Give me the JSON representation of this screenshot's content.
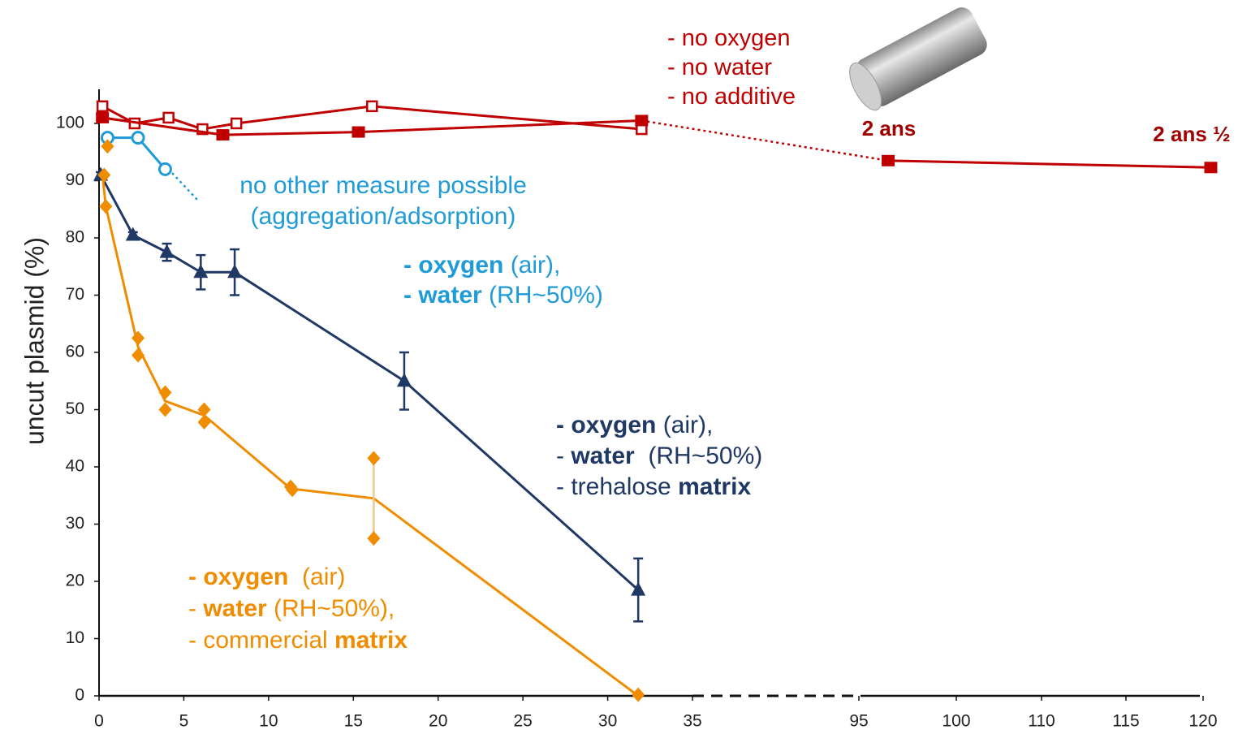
{
  "chart_data": {
    "type": "line",
    "y_label": "uncut plasmid (%)",
    "ylim": [
      0,
      104
    ],
    "yticks": [
      0,
      10,
      20,
      30,
      40,
      50,
      60,
      70,
      80,
      90,
      100
    ],
    "xlim": [
      0,
      121
    ],
    "x_break": [
      35,
      95
    ],
    "xticks": [
      0,
      5,
      10,
      15,
      20,
      25,
      30,
      35,
      95,
      100,
      110,
      115,
      120
    ],
    "series": [
      {
        "color": "#c00000",
        "marker": "square-open",
        "line": true,
        "x": [
          0.2,
          2.1,
          4.1,
          6.1,
          8.1,
          16.1,
          32.0
        ],
        "values": [
          103,
          100,
          101,
          99,
          100,
          103,
          99
        ]
      },
      {
        "color": "#c00000",
        "marker": "square",
        "line": true,
        "x": [
          0.2,
          7.3,
          15.3,
          32.0,
          96.5,
          120.5
        ],
        "values": [
          101,
          98,
          98.5,
          100.5,
          93.5,
          92.3
        ]
      },
      {
        "color": "#1f9bd7",
        "marker": "circle-open",
        "line": true,
        "x": [
          0.5,
          2.3,
          3.9
        ],
        "values": [
          97.5,
          97.5,
          92
        ]
      },
      {
        "color": "#1f3864",
        "marker": "triangle",
        "line": true,
        "x": [
          0.1,
          2.0,
          4.0,
          6.0,
          8.0,
          18.0,
          31.8
        ],
        "values": [
          91,
          80.5,
          77.5,
          74,
          74,
          55,
          18.5
        ],
        "errors": [
          0.5,
          0.5,
          1.5,
          3,
          4,
          5,
          5.5
        ]
      },
      {
        "color": "#f08c00",
        "marker": "none",
        "line": true,
        "error_color": "#f5c58a",
        "x": [
          0.2,
          0.4,
          2.3,
          3.9,
          6.2,
          11.3,
          16.2,
          31.8
        ],
        "values": [
          91,
          85.5,
          61,
          51.5,
          49,
          36.2,
          34.5,
          0
        ],
        "errors": [
          null,
          null,
          null,
          null,
          null,
          null,
          7,
          null
        ]
      },
      {
        "color": "#f08c00",
        "marker": "diamond",
        "line": false,
        "x": [
          0.3,
          0.4,
          0.5,
          2.3,
          2.3,
          3.9,
          3.9,
          6.2,
          6.2,
          11.3,
          11.4,
          16.2,
          16.2,
          31.8
        ],
        "values": [
          91,
          85.5,
          96,
          62.5,
          59.5,
          53,
          50,
          50,
          47.8,
          36.5,
          36,
          41.5,
          27.5,
          0.2
        ]
      }
    ],
    "annotations": [
      {
        "color": "#c00000",
        "lines": [
          [
            {
              "text": "- no oxygen",
              "bold": false
            }
          ],
          [
            {
              "text": "- no water",
              "bold": false
            }
          ],
          [
            {
              "text": "- no additive",
              "bold": false
            }
          ]
        ]
      },
      {
        "color": "#a00000",
        "lines": [
          [
            {
              "text": "2 ans",
              "bold": true
            }
          ]
        ]
      },
      {
        "color": "#a00000",
        "lines": [
          [
            {
              "text": "2 ans ½",
              "bold": true
            }
          ]
        ]
      },
      {
        "color": "#1f9bd7",
        "lines": [
          [
            {
              "text": "no other measure possible",
              "bold": false
            }
          ],
          [
            {
              "text": "(aggregation/adsorption)",
              "bold": false
            }
          ]
        ]
      },
      {
        "color": "#1f9bd7",
        "lines": [
          [
            {
              "text": "- oxygen",
              "bold": true
            },
            {
              "text": " (air),",
              "bold": false
            }
          ],
          [
            {
              "text": "- water",
              "bold": true
            },
            {
              "text": " (RH~50%)",
              "bold": false
            }
          ]
        ]
      },
      {
        "color": "#1f3864",
        "lines": [
          [
            {
              "text": "- oxygen",
              "bold": true
            },
            {
              "text": " (air),",
              "bold": false
            }
          ],
          [
            {
              "text": "- ",
              "bold": false
            },
            {
              "text": "water",
              "bold": true
            },
            {
              "text": "  (RH~50%)",
              "bold": false
            }
          ],
          [
            {
              "text": "- trehalose ",
              "bold": false
            },
            {
              "text": "matrix",
              "bold": true
            }
          ]
        ]
      },
      {
        "color": "#f08c00",
        "lines": [
          [
            {
              "text": "- oxygen",
              "bold": true
            },
            {
              "text": "  (air)",
              "bold": false
            }
          ],
          [
            {
              "text": "- ",
              "bold": false
            },
            {
              "text": "water",
              "bold": true
            },
            {
              "text": " (RH~50%),",
              "bold": false
            }
          ],
          [
            {
              "text": "- commercial ",
              "bold": false
            },
            {
              "text": "matrix",
              "bold": true
            }
          ]
        ]
      }
    ]
  }
}
